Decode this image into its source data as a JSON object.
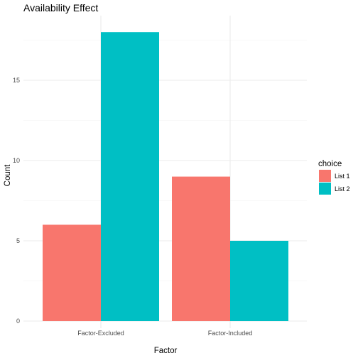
{
  "chart_data": {
    "type": "bar",
    "title": "Availability Effect",
    "xlabel": "Factor",
    "ylabel": "Count",
    "categories": [
      "Factor-Excluded",
      "Factor-Included"
    ],
    "series": [
      {
        "name": "List 1",
        "color": "#F8766D",
        "values": [
          6,
          9
        ]
      },
      {
        "name": "List 2",
        "color": "#00BFC4",
        "values": [
          18,
          5
        ]
      }
    ],
    "ylim": [
      0,
      18
    ],
    "yticks": [
      0,
      5,
      10,
      15
    ],
    "legend": {
      "title": "choice",
      "placement": "right"
    },
    "grid": true
  }
}
